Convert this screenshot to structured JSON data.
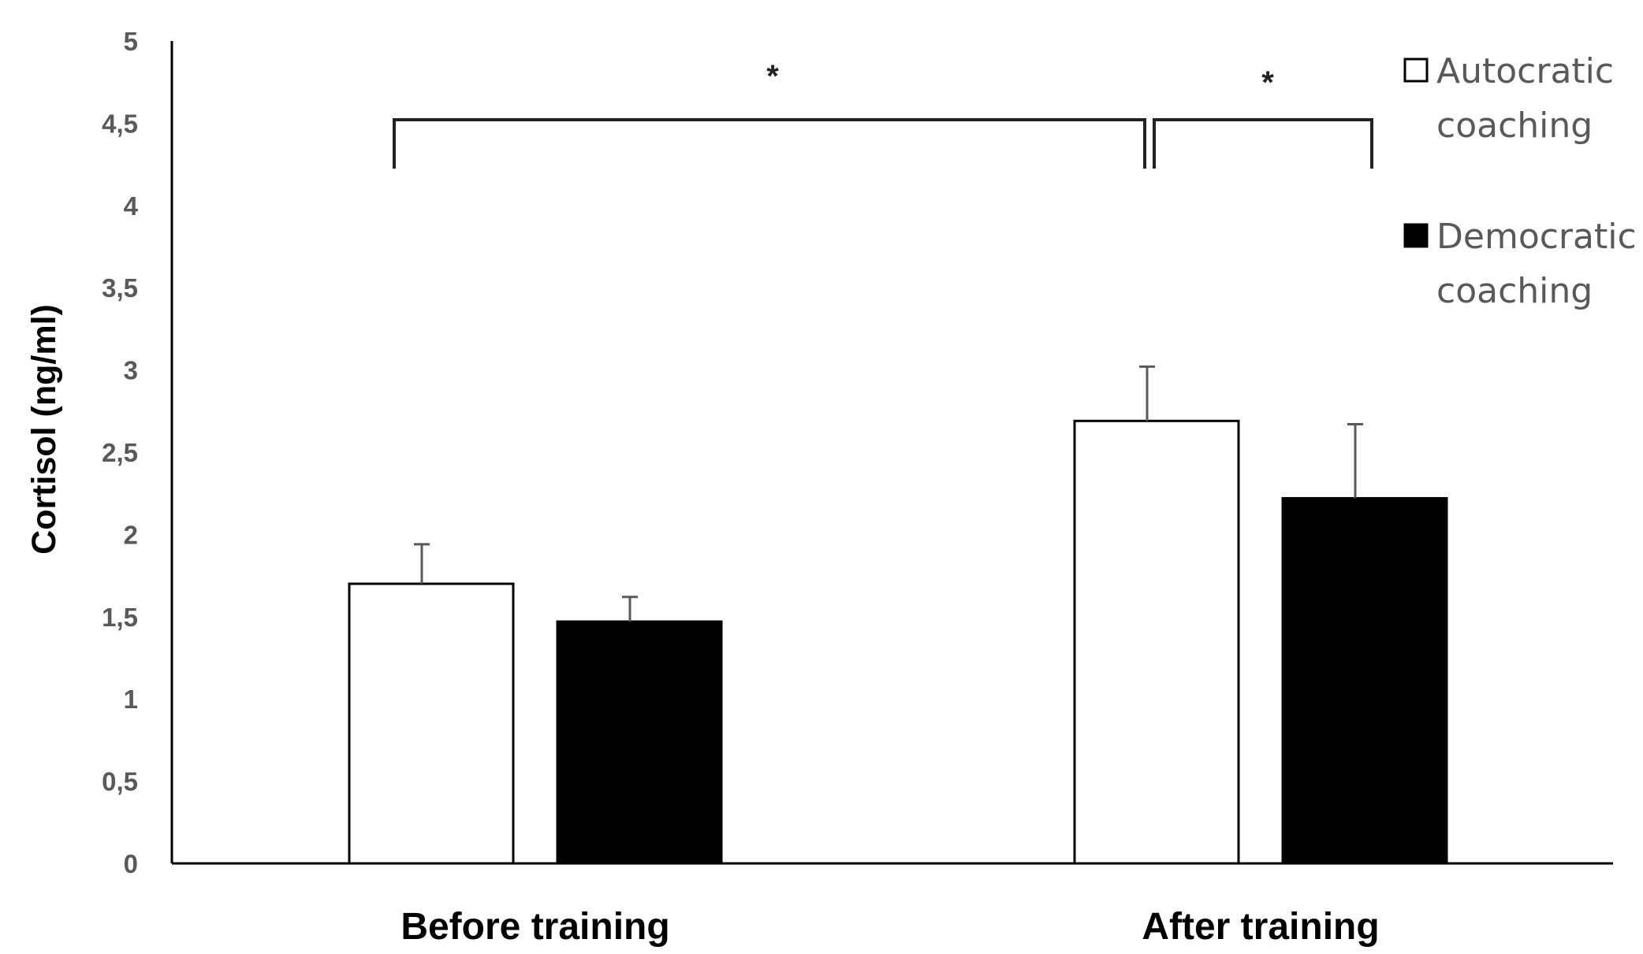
{
  "chart_data": {
    "type": "bar",
    "title": "",
    "xlabel": "",
    "ylabel": "Cortisol (ng/ml)",
    "ylim": [
      0,
      5
    ],
    "ytick_labels": [
      "0",
      "0,5",
      "1",
      "1,5",
      "2",
      "2,5",
      "3",
      "3,5",
      "4",
      "4,5",
      "5"
    ],
    "categories": [
      "Before training",
      "After training"
    ],
    "series": [
      {
        "name": "Autocratic coaching",
        "values": [
          1.7,
          2.69
        ],
        "error": [
          0.24,
          0.33
        ],
        "color": "#ffffff",
        "edge_color": "#000000"
      },
      {
        "name": "Democratic coaching",
        "values": [
          1.47,
          2.22
        ],
        "error": [
          0.15,
          0.45
        ],
        "color": "#000000",
        "edge_color": "#000000"
      }
    ],
    "significance": [
      {
        "from": "Before training",
        "to": "After training",
        "series": "Autocratic coaching",
        "label": "*"
      },
      {
        "from": "Autocratic coaching",
        "to": "Democratic coaching",
        "category": "After training",
        "label": "*"
      }
    ],
    "legend": {
      "position": "top-right",
      "entries": [
        {
          "line1": "Autocratic",
          "line2": "coaching",
          "color": "#ffffff"
        },
        {
          "line1": "Democratic",
          "line2": "coaching",
          "color": "#000000"
        }
      ]
    },
    "grid": false
  }
}
